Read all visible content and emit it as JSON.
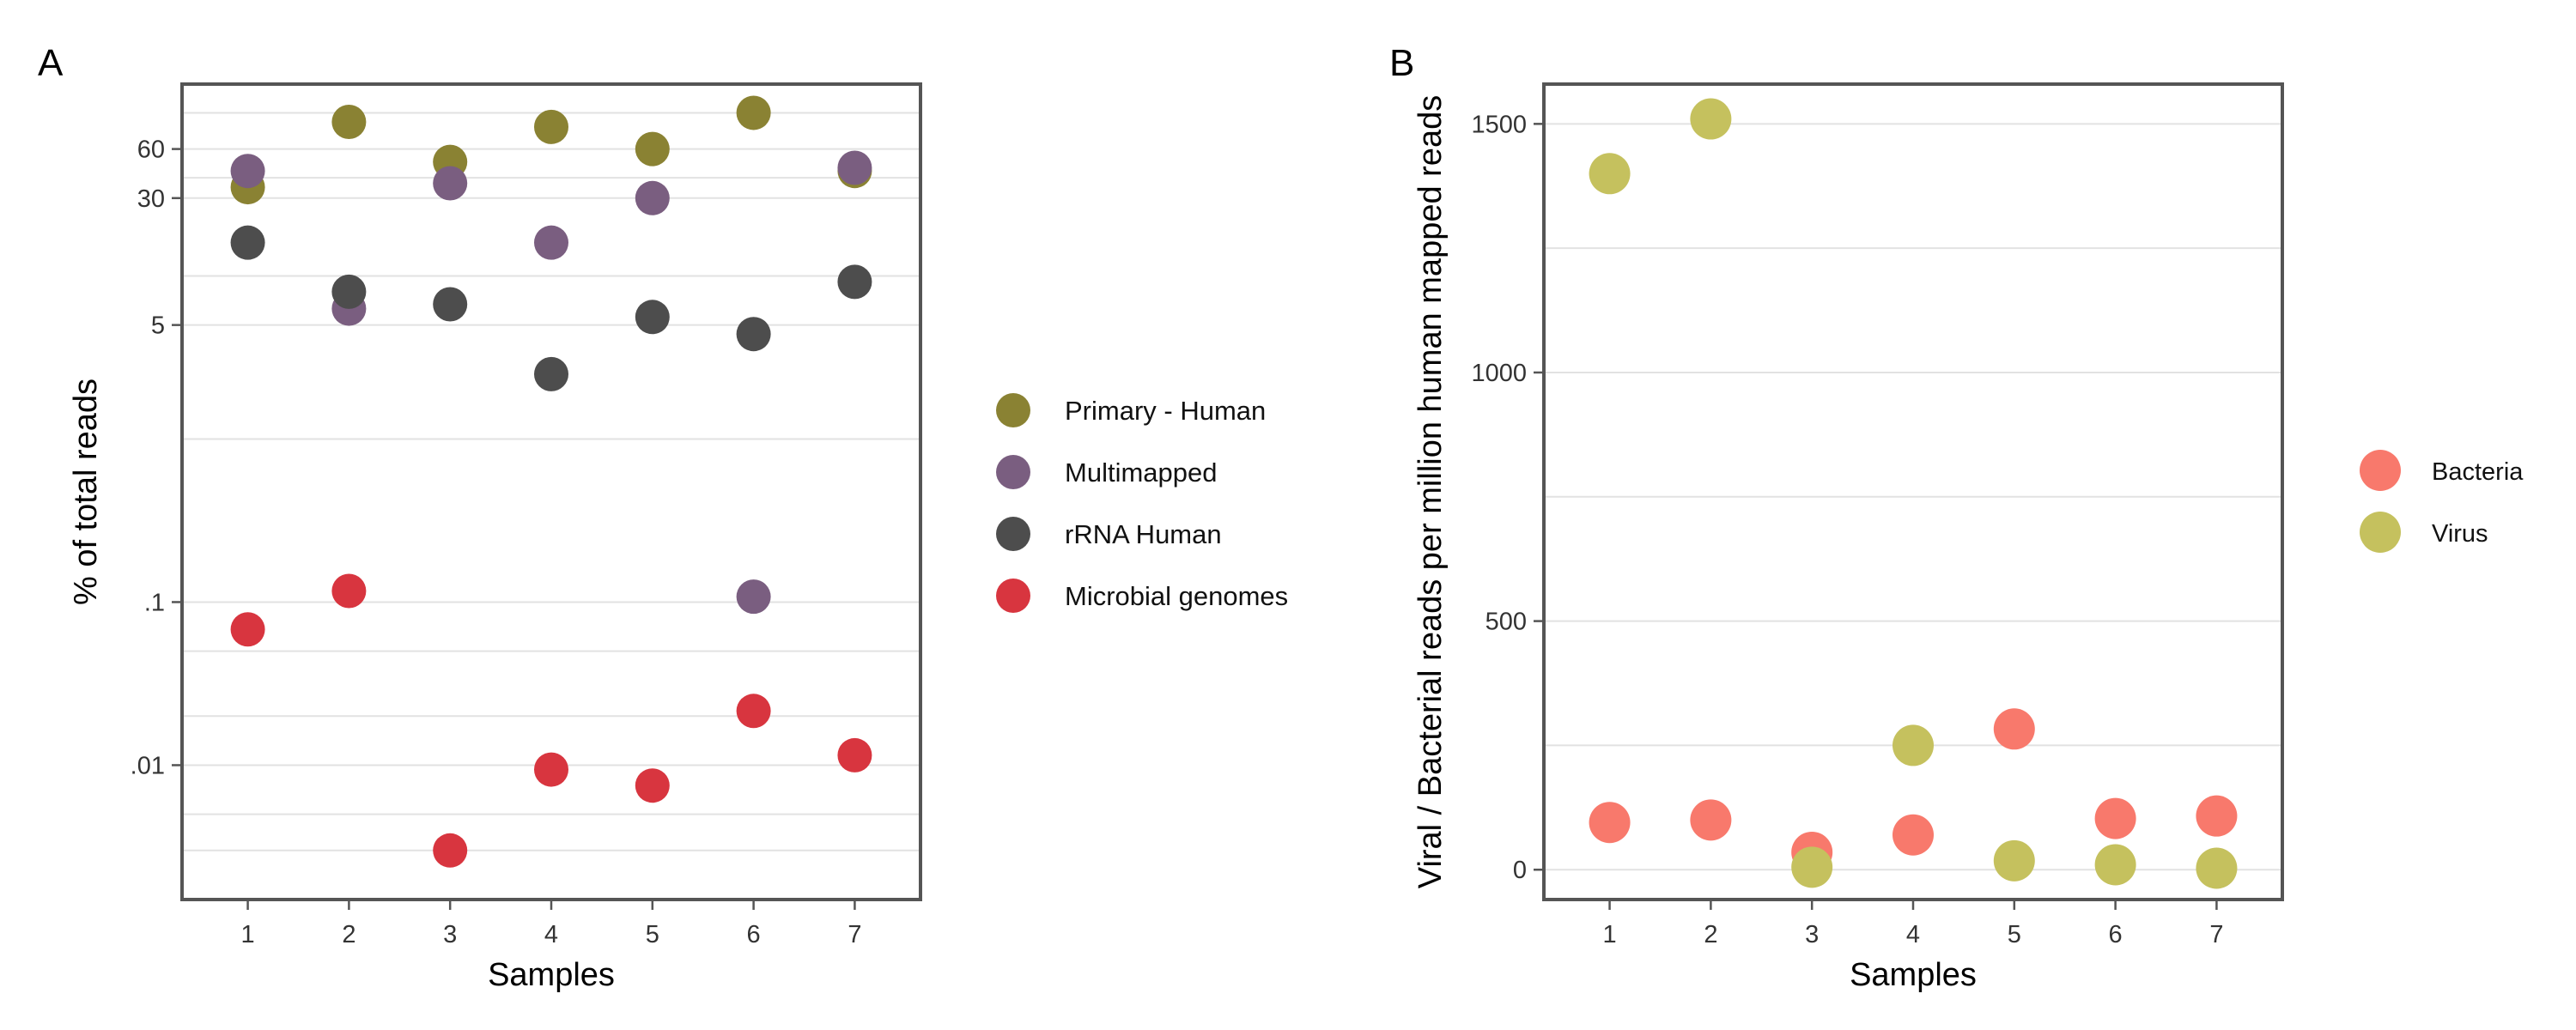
{
  "chart_data": [
    {
      "panel": "A",
      "type": "scatter",
      "title": "",
      "xlabel": "Samples",
      "ylabel": "% of total reads",
      "yscale": "log",
      "ylim": [
        0.0015,
        150
      ],
      "categories": [
        "1",
        "2",
        "3",
        "4",
        "5",
        "6",
        "7"
      ],
      "yticks": [
        60,
        30,
        5,
        0.1,
        0.01
      ],
      "ytick_labels": [
        "60",
        "30",
        "5",
        ".1",
        ".01"
      ],
      "series": [
        {
          "name": "Primary - Human",
          "color": "#8A8233",
          "values": [
            35,
            88,
            50,
            82,
            60,
            100,
            44
          ]
        },
        {
          "name": "Multimapped",
          "color": "#7A5E80",
          "values": [
            44,
            6.3,
            37,
            16,
            30,
            0.108,
            46
          ]
        },
        {
          "name": "rRNA Human",
          "color": "#4D4D4D",
          "values": [
            16,
            8.0,
            6.7,
            2.5,
            5.6,
            4.4,
            9.2
          ]
        },
        {
          "name": "Microbial genomes",
          "color": "#D8353F",
          "values": [
            0.068,
            0.117,
            0.003,
            0.0094,
            0.0075,
            0.0215,
            0.0115
          ]
        }
      ]
    },
    {
      "panel": "B",
      "type": "scatter",
      "title": "",
      "xlabel": "Samples",
      "ylabel": "Viral / Bacterial reads per million human mapped reads",
      "ylim": [
        -60,
        1580
      ],
      "categories": [
        "1",
        "2",
        "3",
        "4",
        "5",
        "6",
        "7"
      ],
      "yticks": [
        0,
        500,
        1000,
        1500
      ],
      "ytick_labels": [
        "0",
        "500",
        "1000",
        "1500"
      ],
      "series": [
        {
          "name": "Bacteria",
          "color": "#F8796C",
          "values": [
            95,
            100,
            35,
            70,
            283,
            103,
            108
          ]
        },
        {
          "name": "Virus",
          "color": "#C5C15E",
          "values": [
            1400,
            1510,
            5,
            250,
            18,
            10,
            3
          ]
        }
      ]
    }
  ]
}
